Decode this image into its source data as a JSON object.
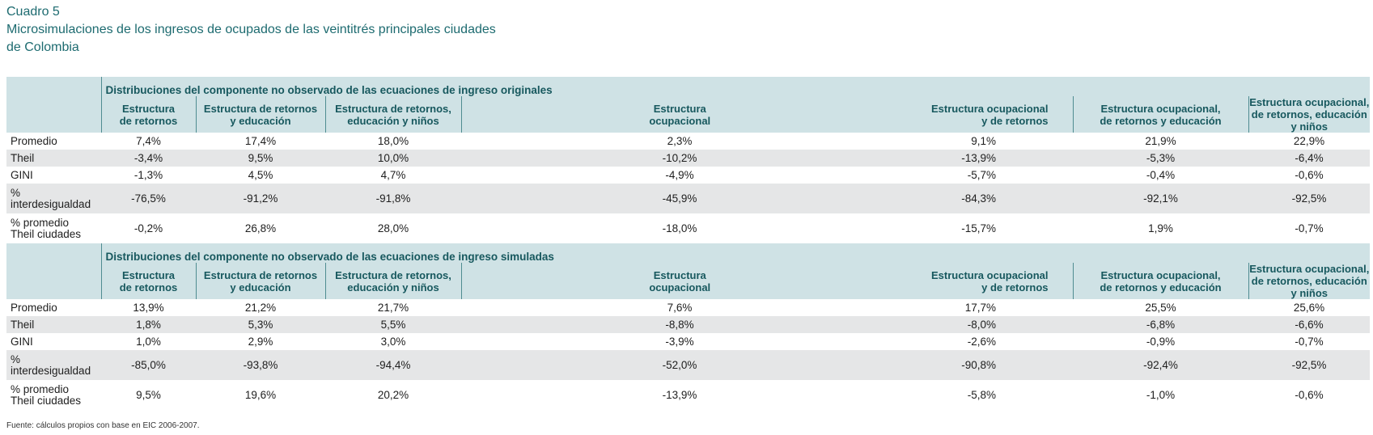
{
  "title": {
    "line1": "Cuadro 5",
    "line2": "Microsimulaciones de los ingresos de ocupados de las veintitrés principales ciudades",
    "line3": "de Colombia"
  },
  "columns": [
    "Estructura\nde retornos",
    "Estructura de retornos\ny educación",
    "Estructura de retornos,\neducación y niños",
    "Estructura\nocupacional",
    "Estructura ocupacional\ny de retornos",
    "Estructura ocupacional,\nde retornos y educación",
    "Estructura ocupacional,\nde retornos, educación y niños"
  ],
  "sections": [
    {
      "title": "Distribuciones del componente no observado de las ecuaciones de ingreso originales",
      "rows": [
        {
          "label": "Promedio",
          "values": [
            "7,4%",
            "17,4%",
            "18,0%",
            "2,3%",
            "9,1%",
            "21,9%",
            "22,9%"
          ]
        },
        {
          "label": "Theil",
          "values": [
            "-3,4%",
            "9,5%",
            "10,0%",
            "-10,2%",
            "-13,9%",
            "-5,3%",
            "-6,4%"
          ]
        },
        {
          "label": "GINI",
          "values": [
            "-1,3%",
            "4,5%",
            "4,7%",
            "-4,9%",
            "-5,7%",
            "-0,4%",
            "-0,6%"
          ]
        },
        {
          "label": "%\ninterdesigualdad",
          "values": [
            "-76,5%",
            "-91,2%",
            "-91,8%",
            "-45,9%",
            "-84,3%",
            "-92,1%",
            "-92,5%"
          ]
        },
        {
          "label": "% promedio\nTheil ciudades",
          "values": [
            "-0,2%",
            "26,8%",
            "28,0%",
            "-18,0%",
            "-15,7%",
            "1,9%",
            "-0,7%"
          ]
        }
      ]
    },
    {
      "title": "Distribuciones del componente no observado de las ecuaciones de ingreso simuladas",
      "rows": [
        {
          "label": "Promedio",
          "values": [
            "13,9%",
            "21,2%",
            "21,7%",
            "7,6%",
            "17,7%",
            "25,5%",
            "25,6%"
          ]
        },
        {
          "label": "Theil",
          "values": [
            "1,8%",
            "5,3%",
            "5,5%",
            "-8,8%",
            "-8,0%",
            "-6,8%",
            "-6,6%"
          ]
        },
        {
          "label": "GINI",
          "values": [
            "1,0%",
            "2,9%",
            "3,0%",
            "-3,9%",
            "-2,6%",
            "-0,9%",
            "-0,7%"
          ]
        },
        {
          "label": "%\ninterdesigualdad",
          "values": [
            "-85,0%",
            "-93,8%",
            "-94,4%",
            "-52,0%",
            "-90,8%",
            "-92,4%",
            "-92,5%"
          ]
        },
        {
          "label": "% promedio\nTheil ciudades",
          "values": [
            "9,5%",
            "19,6%",
            "20,2%",
            "-13,9%",
            "-5,8%",
            "-1,0%",
            "-0,6%"
          ]
        }
      ]
    }
  ],
  "source": "Fuente: cálculos propios con base en EIC 2006-2007."
}
